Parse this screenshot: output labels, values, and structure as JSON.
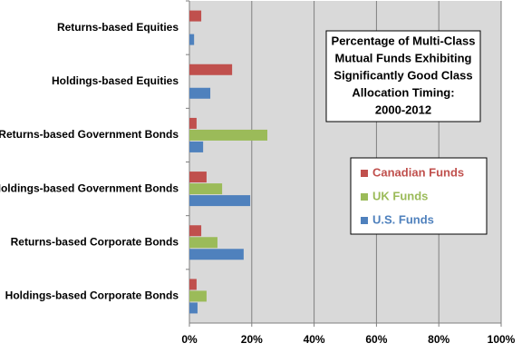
{
  "chart_data": {
    "type": "hbar",
    "title": [
      "Percentage of Multi-Class",
      "Mutual Funds Exhibiting",
      "Significantly Good Class",
      "Allocation Timing:",
      "2000-2012"
    ],
    "categories": [
      "Returns-based Equities",
      "Holdings-based Equities",
      "Returns-based Government Bonds",
      "Holdings-based Government Bonds",
      "Returns-based Corporate Bonds",
      "Holdings-based Corporate Bonds"
    ],
    "series": [
      {
        "name": "Canadian Funds",
        "color": "#c0504d",
        "values": [
          3.8,
          13.7,
          2.3,
          5.5,
          3.8,
          2.3
        ]
      },
      {
        "name": "UK Funds",
        "color": "#9bbb59",
        "values": [
          0,
          0,
          25,
          10.5,
          9,
          5.5
        ]
      },
      {
        "name": "U.S. Funds",
        "color": "#4f81bd",
        "values": [
          1.5,
          6.7,
          4.4,
          19.5,
          17.4,
          2.6
        ]
      }
    ],
    "xlim": [
      0,
      100
    ],
    "xticks": [
      {
        "value": 0,
        "label": "0%"
      },
      {
        "value": 20,
        "label": "20%"
      },
      {
        "value": 40,
        "label": "40%"
      },
      {
        "value": 60,
        "label": "60%"
      },
      {
        "value": 80,
        "label": "80%"
      },
      {
        "value": 100,
        "label": "100%"
      }
    ],
    "grid": true,
    "legend": "right"
  }
}
